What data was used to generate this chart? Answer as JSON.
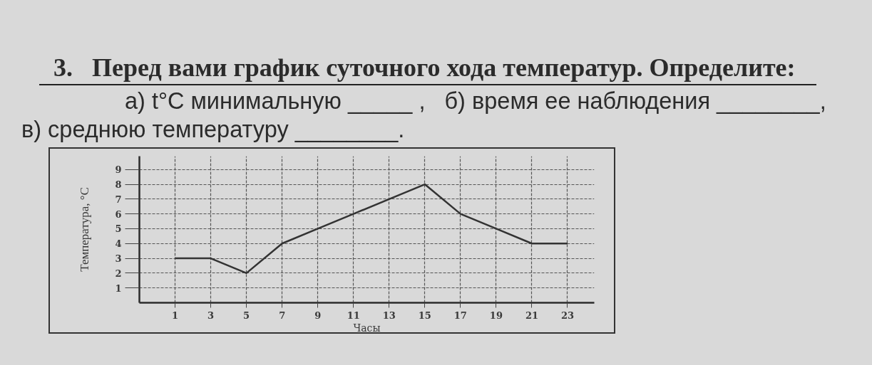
{
  "chart_data": {
    "type": "line",
    "title": "3.   Перед вами график суточного хода температур. Определите:",
    "subtitle": "а) t°C минимальную _____ ,   б) время ее наблюдения ________,",
    "annotations": [
      "в) среднюю температуру ________."
    ],
    "xlabel": "Часы",
    "ylabel": "Температура, °С",
    "x": [
      1,
      3,
      5,
      7,
      9,
      11,
      13,
      15,
      17,
      19,
      21,
      23
    ],
    "series": [
      {
        "color": "#333333",
        "values": [
          3,
          3,
          2,
          4,
          5,
          6,
          7,
          8,
          6,
          5,
          4,
          4
        ]
      }
    ],
    "xlim": [
      -1,
      24.5
    ],
    "ylim": [
      0,
      9.9
    ],
    "xticks": [
      1,
      3,
      5,
      7,
      9,
      11,
      13,
      15,
      17,
      19,
      21,
      23
    ],
    "yticks": [
      1,
      2,
      3,
      4,
      5,
      6,
      7,
      8,
      9
    ],
    "grid": true,
    "line_style": "solid"
  }
}
